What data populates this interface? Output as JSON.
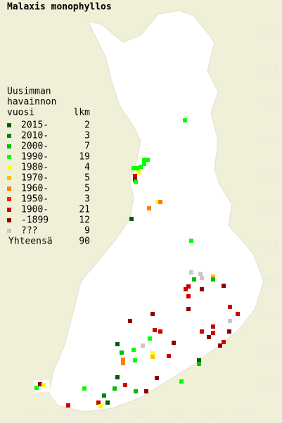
{
  "title": "Malaxis monophyllos",
  "legend": {
    "heading": [
      "Uusimman",
      "havainnon",
      "vuosi"
    ],
    "count_header": "lkm",
    "classes": [
      {
        "name": "2015-",
        "color": "#006000",
        "count": 2
      },
      {
        "name": "2010-",
        "color": "#008800",
        "count": 3
      },
      {
        "name": "2000-",
        "color": "#00c000",
        "count": 7
      },
      {
        "name": "1990-",
        "color": "#00ff00",
        "count": 19
      },
      {
        "name": "1980-",
        "color": "#ffff00",
        "count": 4
      },
      {
        "name": "1970-",
        "color": "#ffc000",
        "count": 5
      },
      {
        "name": "1960-",
        "color": "#ff8000",
        "count": 5
      },
      {
        "name": "1950-",
        "color": "#ff2000",
        "count": 3
      },
      {
        "name": "1900-",
        "color": "#d00000",
        "count": 21
      },
      {
        "name": "-1899",
        "color": "#900000",
        "count": 12
      },
      {
        "name": "???",
        "color": "#c8c8c8",
        "count": 9
      }
    ],
    "total_label": "Yhteensä",
    "total": 90
  },
  "xticks": [
    310,
    320,
    330,
    340,
    350,
    360,
    370
  ],
  "yticks": [
    670,
    680,
    690,
    700,
    710,
    720,
    730,
    740,
    750,
    760,
    770
  ],
  "points": [
    [
      352.6,
      745.6,
      3
    ],
    [
      341,
      734.4,
      3
    ],
    [
      342,
      734.4,
      3
    ],
    [
      341,
      733.2,
      3
    ],
    [
      340,
      732.4,
      3
    ],
    [
      339,
      732,
      3
    ],
    [
      338,
      732,
      3
    ],
    [
      339.4,
      730.8,
      4
    ],
    [
      338.4,
      729.8,
      8
    ],
    [
      338.4,
      728.8,
      9
    ],
    [
      338.6,
      728.2,
      3
    ],
    [
      344.8,
      722.4,
      4
    ],
    [
      345.6,
      722.4,
      6
    ],
    [
      342.4,
      720.6,
      6
    ],
    [
      337.4,
      717.6,
      0
    ],
    [
      354.4,
      711.4,
      3
    ],
    [
      354.4,
      702.4,
      10
    ],
    [
      357,
      702,
      10
    ],
    [
      357.4,
      700.8,
      10
    ],
    [
      355.2,
      700.4,
      2
    ],
    [
      360.6,
      701.2,
      5
    ],
    [
      360.6,
      700.4,
      2
    ],
    [
      353.6,
      698.4,
      8
    ],
    [
      352.8,
      697.6,
      8
    ],
    [
      357.4,
      697.6,
      9
    ],
    [
      363.6,
      698.6,
      9
    ],
    [
      353.6,
      695.6,
      8
    ],
    [
      353.6,
      692,
      9
    ],
    [
      365.4,
      692.6,
      8
    ],
    [
      367.6,
      690.6,
      8
    ],
    [
      365.4,
      688.6,
      10
    ],
    [
      343.4,
      690.6,
      9
    ],
    [
      337,
      688.6,
      9
    ],
    [
      344,
      686,
      8
    ],
    [
      345.6,
      685.6,
      8
    ],
    [
      360.6,
      687,
      8
    ],
    [
      360.6,
      685.2,
      8
    ],
    [
      365.2,
      685.6,
      9
    ],
    [
      357.4,
      685.6,
      8
    ],
    [
      359.4,
      684,
      9
    ],
    [
      363.6,
      682.6,
      8
    ],
    [
      362.6,
      681.6,
      9
    ],
    [
      349.4,
      682.4,
      9
    ],
    [
      342.6,
      683.6,
      3
    ],
    [
      340.6,
      681.6,
      10
    ],
    [
      333.4,
      682,
      0
    ],
    [
      334.6,
      679.6,
      2
    ],
    [
      338,
      680.4,
      3
    ],
    [
      343.4,
      679.4,
      4
    ],
    [
      343.4,
      678.4,
      5
    ],
    [
      348,
      678.6,
      8
    ],
    [
      335,
      677.6,
      6
    ],
    [
      335,
      676.6,
      6
    ],
    [
      338.4,
      677.4,
      3
    ],
    [
      356.6,
      677.4,
      0
    ],
    [
      356.6,
      676.4,
      2
    ],
    [
      344.6,
      672.4,
      9
    ],
    [
      351.6,
      671.4,
      3
    ],
    [
      333.4,
      672.6,
      0
    ],
    [
      335.6,
      670.4,
      8
    ],
    [
      332.6,
      669.4,
      2
    ],
    [
      338.6,
      668.6,
      2
    ],
    [
      341.6,
      668.6,
      9
    ],
    [
      329.6,
      667.4,
      1
    ],
    [
      324,
      669.4,
      3
    ],
    [
      311.4,
      670.6,
      9
    ],
    [
      312.4,
      670.4,
      4
    ],
    [
      310.4,
      669.6,
      3
    ],
    [
      328,
      665.4,
      8
    ],
    [
      328.6,
      664.4,
      4
    ],
    [
      330.6,
      665.4,
      0
    ],
    [
      319.4,
      664.6,
      8
    ]
  ]
}
